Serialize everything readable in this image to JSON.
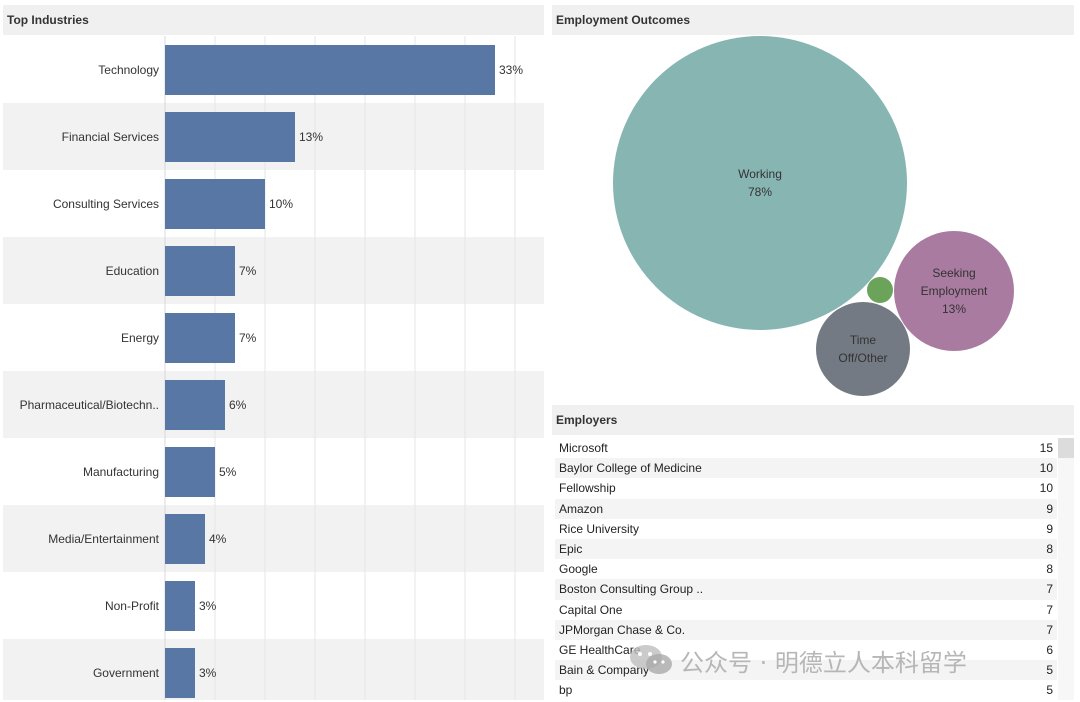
{
  "panels": {
    "industries_title": "Top Industries",
    "outcomes_title": "Employment Outcomes",
    "employers_title": "Employers"
  },
  "colors": {
    "bar": "#5977a4",
    "working": "#87b5b2",
    "seeking": "#a97ba0",
    "time_off": "#737a83",
    "other_small": "#6ba35a",
    "header_bg": "#f0f0f0"
  },
  "chart_data": [
    {
      "type": "bar",
      "orientation": "horizontal",
      "title": "Top Industries",
      "categories": [
        "Technology",
        "Financial Services",
        "Consulting Services",
        "Education",
        "Energy",
        "Pharmaceutical/Biotechn..",
        "Manufacturing",
        "Media/Entertainment",
        "Non-Profit",
        "Government"
      ],
      "values": [
        33,
        13,
        10,
        7,
        7,
        6,
        5,
        4,
        3,
        3
      ],
      "labels": [
        "33%",
        "13%",
        "10%",
        "7%",
        "7%",
        "6%",
        "5%",
        "4%",
        "3%",
        "3%"
      ],
      "xlim": [
        0,
        38
      ],
      "grid": true
    },
    {
      "type": "bubble",
      "title": "Employment Outcomes",
      "bubbles": [
        {
          "label_lines": [
            "Working",
            "78%"
          ],
          "value": 78,
          "color": "#87b5b2"
        },
        {
          "label_lines": [
            "Seeking",
            "Employment",
            "13%"
          ],
          "value": 13,
          "color": "#a97ba0"
        },
        {
          "label_lines": [
            "Time",
            "Off/Other"
          ],
          "value": 7,
          "color": "#737a83"
        },
        {
          "label_lines": [],
          "value": 1,
          "color": "#6ba35a"
        }
      ]
    }
  ],
  "employers": [
    {
      "name": "Microsoft",
      "count": "15"
    },
    {
      "name": "Baylor College of Medicine",
      "count": "10"
    },
    {
      "name": "Fellowship",
      "count": "10"
    },
    {
      "name": "Amazon",
      "count": "9"
    },
    {
      "name": "Rice University",
      "count": "9"
    },
    {
      "name": "Epic",
      "count": "8"
    },
    {
      "name": "Google",
      "count": "8"
    },
    {
      "name": "Boston Consulting Group ..",
      "count": "7"
    },
    {
      "name": "Capital One",
      "count": "7"
    },
    {
      "name": "JPMorgan Chase & Co.",
      "count": "7"
    },
    {
      "name": "GE HealthCare",
      "count": "6"
    },
    {
      "name": "Bain & Company",
      "count": "5"
    },
    {
      "name": "bp",
      "count": "5"
    }
  ],
  "watermark": {
    "text": "公众号 · 明德立人本科留学"
  }
}
